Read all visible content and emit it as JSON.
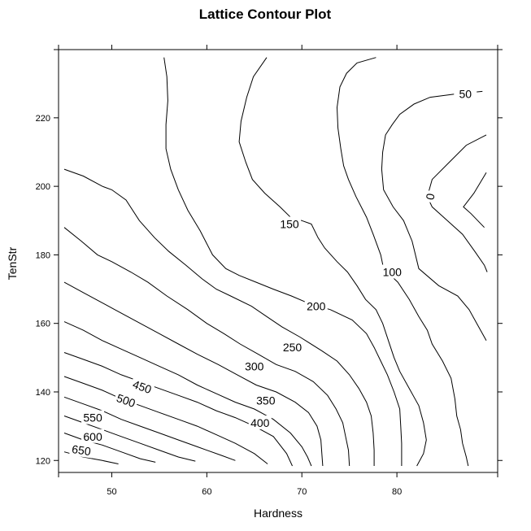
{
  "chart_data": {
    "type": "contour",
    "title": "Lattice Contour Plot",
    "xlabel": "Hardness",
    "ylabel": "TenStr",
    "xlim": [
      44.4,
      90.6
    ],
    "ylim": [
      116.5,
      239.9
    ],
    "x_ticks": [
      50,
      60,
      70,
      80
    ],
    "y_ticks": [
      120,
      140,
      160,
      180,
      200,
      220
    ],
    "x_tick_labels": [
      "50",
      "60",
      "70",
      "80"
    ],
    "y_tick_labels": [
      "120",
      "140",
      "160",
      "180",
      "200",
      "220"
    ],
    "grid": false,
    "contours": [
      {
        "level": "0",
        "label": {
          "x": 83.5,
          "y": 197,
          "rotate": -80
        },
        "points": [
          [
            89.4,
            204
          ],
          [
            88.1,
            198
          ],
          [
            87.0,
            194
          ],
          [
            87.8,
            192
          ],
          [
            88.5,
            190
          ],
          [
            89.2,
            188
          ]
        ]
      },
      {
        "level": "0",
        "label": null,
        "points": [
          [
            89.4,
            215
          ],
          [
            87.3,
            212
          ],
          [
            85.5,
            207
          ],
          [
            83.7,
            202
          ],
          [
            83.2,
            197
          ],
          [
            83.7,
            194
          ],
          [
            85.3,
            190
          ],
          [
            86.9,
            186
          ],
          [
            88.2,
            181
          ],
          [
            89.2,
            177
          ],
          [
            89.5,
            175
          ]
        ]
      },
      {
        "level": "50",
        "label": {
          "x": 87.2,
          "y": 227,
          "rotate": 0
        },
        "points": [
          [
            89.0,
            227.7
          ],
          [
            86.3,
            227
          ],
          [
            83.5,
            226
          ],
          [
            81.8,
            224
          ],
          [
            80.3,
            221
          ],
          [
            79.5,
            218
          ],
          [
            78.8,
            215
          ],
          [
            78.5,
            210
          ],
          [
            78.4,
            205
          ],
          [
            78.6,
            199
          ],
          [
            79.6,
            194
          ],
          [
            80.7,
            190
          ],
          [
            81.6,
            184
          ],
          [
            82.3,
            176
          ],
          [
            84.4,
            171
          ],
          [
            86.4,
            168
          ],
          [
            87.6,
            164
          ],
          [
            88.4,
            160
          ],
          [
            89.4,
            155
          ]
        ]
      },
      {
        "level": "100",
        "label": {
          "x": 79.5,
          "y": 175,
          "rotate": 0
        },
        "points": [
          [
            77.8,
            237.6
          ],
          [
            75.8,
            236
          ],
          [
            74.7,
            233
          ],
          [
            74.0,
            229
          ],
          [
            73.7,
            223
          ],
          [
            73.8,
            217
          ],
          [
            74.1,
            211
          ],
          [
            74.4,
            206
          ],
          [
            74.9,
            202
          ],
          [
            75.7,
            197
          ],
          [
            76.8,
            191
          ],
          [
            77.5,
            186
          ],
          [
            78.3,
            180
          ],
          [
            78.6,
            176
          ],
          [
            80.1,
            172
          ],
          [
            81.3,
            167
          ],
          [
            82.3,
            162
          ],
          [
            83.2,
            158
          ],
          [
            83.7,
            154
          ],
          [
            84.8,
            149
          ],
          [
            85.7,
            144
          ],
          [
            86.1,
            138
          ],
          [
            86.3,
            133
          ],
          [
            86.7,
            129
          ],
          [
            86.9,
            125
          ],
          [
            87.3,
            121
          ],
          [
            87.5,
            118.4
          ]
        ]
      },
      {
        "level": "150",
        "label": {
          "x": 68.7,
          "y": 189,
          "rotate": 0
        },
        "points": [
          [
            66.3,
            237.6
          ],
          [
            64.9,
            232
          ],
          [
            64.2,
            226
          ],
          [
            63.6,
            219
          ],
          [
            63.4,
            213
          ],
          [
            64.1,
            207
          ],
          [
            64.8,
            202
          ],
          [
            66.1,
            198
          ],
          [
            67.7,
            194
          ],
          [
            68.8,
            191
          ],
          [
            70.0,
            190
          ],
          [
            71.0,
            189
          ],
          [
            71.7,
            185
          ],
          [
            72.4,
            182
          ],
          [
            73.7,
            178
          ],
          [
            74.8,
            175
          ],
          [
            75.8,
            171
          ],
          [
            76.7,
            167
          ],
          [
            77.8,
            164
          ],
          [
            78.5,
            160
          ],
          [
            79.1,
            155
          ],
          [
            79.7,
            150
          ],
          [
            80.3,
            146
          ],
          [
            81.3,
            141
          ],
          [
            82.3,
            136
          ],
          [
            82.8,
            131
          ],
          [
            83.1,
            126
          ],
          [
            82.8,
            122
          ],
          [
            82.1,
            118.4
          ]
        ]
      },
      {
        "level": "200",
        "label": {
          "x": 71.5,
          "y": 165,
          "rotate": 0
        },
        "points": [
          [
            55.5,
            237.6
          ],
          [
            55.8,
            232
          ],
          [
            55.9,
            225
          ],
          [
            55.7,
            218
          ],
          [
            55.7,
            211
          ],
          [
            56.2,
            205
          ],
          [
            57.0,
            199
          ],
          [
            58.0,
            193
          ],
          [
            59.3,
            187
          ],
          [
            60.6,
            180
          ],
          [
            62.0,
            176
          ],
          [
            63.4,
            174
          ],
          [
            65.2,
            172
          ],
          [
            67.0,
            170
          ],
          [
            68.9,
            168
          ],
          [
            70.6,
            166
          ],
          [
            73.0,
            164
          ],
          [
            75.3,
            161
          ],
          [
            76.8,
            157
          ],
          [
            77.6,
            153
          ],
          [
            78.3,
            149
          ],
          [
            79.0,
            145
          ],
          [
            79.7,
            140
          ],
          [
            80.3,
            135
          ],
          [
            80.4,
            130
          ],
          [
            80.5,
            125
          ],
          [
            80.5,
            121
          ],
          [
            80.5,
            118.4
          ]
        ]
      },
      {
        "level": "250",
        "label": {
          "x": 69.0,
          "y": 153,
          "rotate": 0
        },
        "points": [
          [
            45.0,
            205
          ],
          [
            47.0,
            203
          ],
          [
            49.0,
            200
          ],
          [
            50.0,
            199
          ],
          [
            51.5,
            196
          ],
          [
            52.9,
            190
          ],
          [
            54.5,
            185
          ],
          [
            56.0,
            181
          ],
          [
            57.8,
            177
          ],
          [
            59.5,
            173
          ],
          [
            61.0,
            170
          ],
          [
            62.5,
            168
          ],
          [
            64.7,
            165
          ],
          [
            66.3,
            162
          ],
          [
            67.9,
            159
          ],
          [
            69.8,
            156
          ],
          [
            72.1,
            152
          ],
          [
            73.7,
            149
          ],
          [
            75.0,
            145
          ],
          [
            76.0,
            141
          ],
          [
            76.8,
            137
          ],
          [
            77.3,
            133
          ],
          [
            77.5,
            128
          ],
          [
            77.6,
            123
          ],
          [
            77.6,
            118.4
          ]
        ]
      },
      {
        "level": "300",
        "label": {
          "x": 65.0,
          "y": 147.5,
          "rotate": 0
        },
        "points": [
          [
            45.0,
            188
          ],
          [
            46.8,
            184
          ],
          [
            48.5,
            180
          ],
          [
            50.0,
            178
          ],
          [
            52.0,
            175
          ],
          [
            53.8,
            172
          ],
          [
            55.8,
            168
          ],
          [
            58.0,
            164
          ],
          [
            60.0,
            160
          ],
          [
            61.8,
            157
          ],
          [
            63.5,
            154
          ],
          [
            65.4,
            151
          ],
          [
            67.3,
            148
          ],
          [
            69.3,
            146
          ],
          [
            71.2,
            143
          ],
          [
            72.7,
            139
          ],
          [
            73.6,
            135
          ],
          [
            74.3,
            131
          ],
          [
            74.6,
            127
          ],
          [
            74.9,
            123
          ],
          [
            75.0,
            118.4
          ]
        ]
      },
      {
        "level": "350",
        "label": {
          "x": 66.2,
          "y": 137.5,
          "rotate": 0
        },
        "points": [
          [
            45.0,
            172
          ],
          [
            47.0,
            169
          ],
          [
            49.0,
            166
          ],
          [
            51.0,
            163
          ],
          [
            53.0,
            160
          ],
          [
            55.0,
            157
          ],
          [
            57.0,
            154
          ],
          [
            59.0,
            151
          ],
          [
            61.2,
            148
          ],
          [
            63.2,
            145
          ],
          [
            65.2,
            142
          ],
          [
            67.3,
            140
          ],
          [
            69.3,
            137
          ],
          [
            70.7,
            134
          ],
          [
            71.6,
            130
          ],
          [
            72.0,
            126
          ],
          [
            72.1,
            122
          ],
          [
            72.2,
            118.4
          ]
        ]
      },
      {
        "level": "400",
        "label": {
          "x": 65.6,
          "y": 131,
          "rotate": 0
        },
        "points": [
          [
            45.0,
            160.5
          ],
          [
            47.0,
            158
          ],
          [
            49.0,
            155
          ],
          [
            51.0,
            152.5
          ],
          [
            53.0,
            150
          ],
          [
            55.0,
            147.5
          ],
          [
            57.0,
            145
          ],
          [
            59.0,
            142
          ],
          [
            61.0,
            139.5
          ],
          [
            63.0,
            137
          ],
          [
            65.0,
            135
          ],
          [
            67.0,
            132
          ],
          [
            68.8,
            128
          ],
          [
            70.0,
            124
          ],
          [
            70.6,
            121
          ],
          [
            71.0,
            118.4
          ]
        ]
      },
      {
        "level": "450",
        "label": {
          "x": 53.2,
          "y": 141.5,
          "rotate": 20
        },
        "points": [
          [
            45.0,
            151.5
          ],
          [
            47.0,
            149.5
          ],
          [
            49.0,
            147.5
          ],
          [
            51.0,
            145
          ],
          [
            53.0,
            143
          ],
          [
            55.0,
            141
          ],
          [
            57.0,
            139
          ],
          [
            59.0,
            137
          ],
          [
            61.0,
            134.5
          ],
          [
            63.0,
            132.5
          ],
          [
            65.0,
            130
          ],
          [
            67.0,
            127
          ],
          [
            68.4,
            122
          ],
          [
            69.0,
            118.4
          ]
        ]
      },
      {
        "level": "500",
        "label": {
          "x": 51.5,
          "y": 137.5,
          "rotate": 20
        },
        "points": [
          [
            45.0,
            144.5
          ],
          [
            47.0,
            142.5
          ],
          [
            49.0,
            140.5
          ],
          [
            51.0,
            138
          ],
          [
            53.0,
            136
          ],
          [
            55.0,
            134
          ],
          [
            57.0,
            132
          ],
          [
            59.0,
            130
          ],
          [
            61.0,
            127.5
          ],
          [
            63.0,
            125
          ],
          [
            65.0,
            122
          ],
          [
            66.4,
            119
          ]
        ]
      },
      {
        "level": "550",
        "label": {
          "x": 48.0,
          "y": 132.5,
          "rotate": 0
        },
        "points": [
          [
            45.0,
            138.5
          ],
          [
            47.0,
            136.5
          ],
          [
            49.0,
            134.5
          ],
          [
            51.0,
            132
          ],
          [
            53.0,
            130
          ],
          [
            55.0,
            128
          ],
          [
            57.0,
            126
          ],
          [
            59.0,
            124
          ],
          [
            61.5,
            121.5
          ],
          [
            63.0,
            120
          ]
        ]
      },
      {
        "level": "600",
        "label": {
          "x": 48.0,
          "y": 127,
          "rotate": 0
        },
        "points": [
          [
            45.0,
            133
          ],
          [
            47.0,
            131
          ],
          [
            49.0,
            129
          ],
          [
            51.0,
            127
          ],
          [
            53.0,
            125
          ],
          [
            55.0,
            123
          ],
          [
            57.0,
            121
          ],
          [
            58.8,
            119.8
          ]
        ]
      },
      {
        "level": "650",
        "label": {
          "x": 46.8,
          "y": 123,
          "rotate": 8
        },
        "points": [
          [
            45.0,
            128
          ],
          [
            47.0,
            126
          ],
          [
            49.0,
            124.5
          ],
          [
            51.0,
            122.5
          ],
          [
            53.0,
            120.5
          ],
          [
            54.6,
            119.5
          ]
        ]
      },
      {
        "level": "650",
        "label": null,
        "points": [
          [
            45.0,
            122.5
          ],
          [
            47.0,
            121
          ],
          [
            49.0,
            120
          ],
          [
            50.7,
            119
          ]
        ]
      }
    ]
  }
}
